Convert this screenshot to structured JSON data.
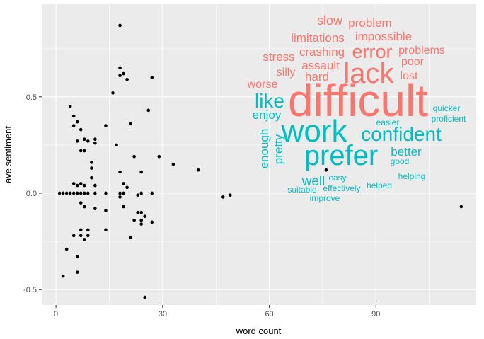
{
  "chart_data": {
    "type": "scatter",
    "title": "",
    "xlabel": "word  count",
    "ylabel": "ave  sentiment",
    "xlim": [
      -4,
      118
    ],
    "ylim": [
      -0.58,
      0.98
    ],
    "x_ticks": [
      0,
      30,
      60,
      90
    ],
    "y_ticks": [
      -0.5,
      0.0,
      0.5
    ],
    "x_tick_labels": [
      "0",
      "30",
      "60",
      "90"
    ],
    "y_tick_labels": [
      "-0.5",
      "0.0",
      "0.5"
    ],
    "grid": true,
    "panel_background": "#ebebeb",
    "grid_color": "#ffffff",
    "point_color": "#000000",
    "points": [
      [
        18,
        0.87
      ],
      [
        18,
        0.65
      ],
      [
        18,
        0.61
      ],
      [
        19,
        0.62
      ],
      [
        20,
        0.59
      ],
      [
        27,
        0.6
      ],
      [
        16,
        0.52
      ],
      [
        26,
        0.43
      ],
      [
        4,
        0.45
      ],
      [
        5,
        0.4
      ],
      [
        6,
        0.37
      ],
      [
        5,
        0.35
      ],
      [
        7,
        0.33
      ],
      [
        14,
        0.35
      ],
      [
        21,
        0.36
      ],
      [
        8,
        0.28
      ],
      [
        9,
        0.27
      ],
      [
        11,
        0.28
      ],
      [
        11,
        0.26
      ],
      [
        6,
        0.27
      ],
      [
        7,
        0.22
      ],
      [
        17,
        0.25
      ],
      [
        8,
        0.22
      ],
      [
        10,
        0.16
      ],
      [
        10,
        0.13
      ],
      [
        22,
        0.19
      ],
      [
        29,
        0.19
      ],
      [
        33,
        0.15
      ],
      [
        40,
        0.12
      ],
      [
        18,
        0.11
      ],
      [
        24,
        0.11
      ],
      [
        10,
        0.08
      ],
      [
        19,
        0.05
      ],
      [
        20,
        0.03
      ],
      [
        5,
        0.05
      ],
      [
        6,
        0.04
      ],
      [
        7,
        0.05
      ],
      [
        8,
        0.04
      ],
      [
        11,
        0.04
      ],
      [
        1,
        0.0
      ],
      [
        2,
        0.0
      ],
      [
        3,
        0.0
      ],
      [
        4,
        0.0
      ],
      [
        5,
        0.0
      ],
      [
        6,
        0.0
      ],
      [
        7,
        0.0
      ],
      [
        8,
        0.0
      ],
      [
        9,
        0.0
      ],
      [
        11,
        0.0
      ],
      [
        14,
        0.0
      ],
      [
        18,
        0.0
      ],
      [
        19,
        0.0
      ],
      [
        24,
        0.0
      ],
      [
        27,
        0.0
      ],
      [
        18,
        -0.02
      ],
      [
        23,
        -0.01
      ],
      [
        47,
        -0.02
      ],
      [
        49,
        -0.01
      ],
      [
        76,
        0.12
      ],
      [
        114,
        -0.07
      ],
      [
        7,
        -0.05
      ],
      [
        8,
        -0.07
      ],
      [
        11,
        -0.08
      ],
      [
        14,
        -0.09
      ],
      [
        19,
        -0.07
      ],
      [
        23,
        -0.1
      ],
      [
        24,
        -0.1
      ],
      [
        25,
        -0.12
      ],
      [
        24,
        -0.14
      ],
      [
        22,
        -0.14
      ],
      [
        27,
        -0.15
      ],
      [
        24,
        -0.16
      ],
      [
        5,
        -0.22
      ],
      [
        7,
        -0.19
      ],
      [
        9,
        -0.19
      ],
      [
        7,
        -0.22
      ],
      [
        8,
        -0.24
      ],
      [
        9,
        -0.22
      ],
      [
        14,
        -0.19
      ],
      [
        21,
        -0.23
      ],
      [
        3,
        -0.29
      ],
      [
        6,
        -0.33
      ],
      [
        6,
        -0.41
      ],
      [
        2,
        -0.43
      ],
      [
        25,
        -0.54
      ]
    ],
    "wordcloud": {
      "negative_color": "#F8766D",
      "positive_color": "#00BFC4",
      "negative_words": [
        "difficult",
        "lack",
        "error",
        "slow",
        "problem",
        "limitations",
        "impossible",
        "crashing",
        "problems",
        "stress",
        "assault",
        "poor",
        "silly",
        "hard",
        "lost",
        "worse"
      ],
      "positive_words": [
        "work",
        "prefer",
        "confident",
        "like",
        "enjoy",
        "enough",
        "pretty",
        "better",
        "good",
        "quicker",
        "proficient",
        "easier",
        "helping",
        "well",
        "easy",
        "suitable",
        "effectively",
        "helped",
        "improve"
      ]
    }
  }
}
